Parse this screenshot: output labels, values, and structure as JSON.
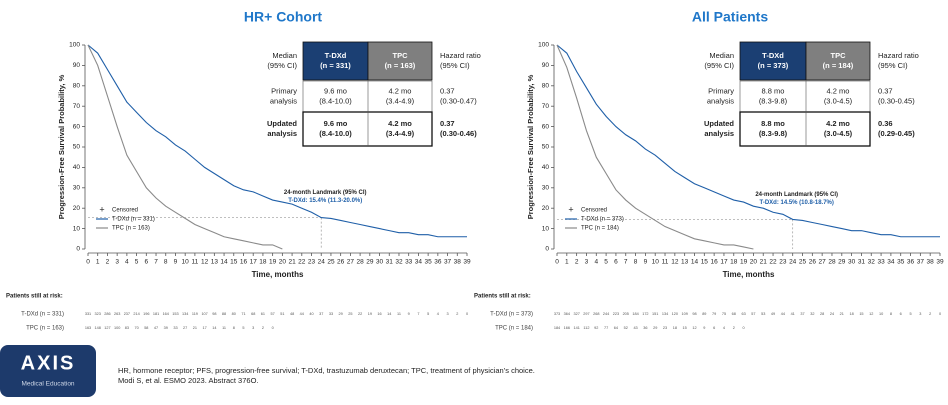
{
  "chart_data": [
    {
      "type": "line",
      "title": "HR+ Cohort",
      "x_label": "Time, months",
      "y_label": "Progression-Free Survival Probability, %",
      "x": [
        0,
        1,
        2,
        3,
        4,
        5,
        6,
        7,
        8,
        9,
        10,
        11,
        12,
        13,
        14,
        15,
        16,
        17,
        18,
        19,
        20,
        21,
        22,
        23,
        24,
        25,
        26,
        27,
        28,
        29,
        30,
        31,
        32,
        33,
        34,
        35,
        36,
        37,
        38,
        39
      ],
      "xlim": [
        0,
        39
      ],
      "xticks": [
        0,
        1,
        2,
        3,
        4,
        5,
        6,
        7,
        8,
        9,
        10,
        11,
        12,
        13,
        14,
        15,
        16,
        17,
        18,
        19,
        20,
        21,
        22,
        23,
        24,
        25,
        26,
        27,
        28,
        29,
        30,
        31,
        32,
        33,
        34,
        35,
        36,
        37,
        38,
        39
      ],
      "ylim": [
        0,
        100
      ],
      "yticks": [
        0,
        10,
        20,
        30,
        40,
        50,
        60,
        70,
        80,
        90,
        100
      ],
      "censored_label": "Censored",
      "series": [
        {
          "name": "T-DXd (n = 331)",
          "color": "#1f5fa8",
          "values": [
            100,
            96,
            88,
            80,
            72,
            67,
            62,
            58,
            55,
            51,
            48,
            44,
            40,
            37,
            34,
            31,
            29,
            28,
            26,
            24,
            23,
            22,
            20,
            18,
            15.4,
            15,
            14,
            13,
            12,
            11,
            10,
            9,
            8,
            8,
            7,
            7,
            6,
            6,
            6,
            6
          ]
        },
        {
          "name": "TPC (n = 163)",
          "color": "#8a8a8a",
          "values": [
            100,
            90,
            75,
            60,
            46,
            38,
            30,
            25,
            21,
            18,
            15,
            12,
            10,
            8,
            6,
            5,
            4,
            3,
            2,
            2,
            0,
            null,
            null,
            null,
            null,
            null,
            null,
            null,
            null,
            null,
            null,
            null,
            null,
            null,
            null,
            null,
            null,
            null,
            null,
            null
          ]
        }
      ],
      "landmark": {
        "title": "24-month Landmark (95% CI)",
        "label": "T-DXd: 15.4% (11.3-20.0%)",
        "x": 24,
        "value": 15.4
      },
      "table": {
        "header": [
          [
            "Median",
            "(95% CI)"
          ],
          [
            "T-DXd",
            "(n = 331)"
          ],
          [
            "TPC",
            "(n = 163)"
          ],
          [
            "Hazard ratio",
            "(95% CI)"
          ]
        ],
        "rows": [
          [
            [
              "Primary",
              "analysis"
            ],
            [
              "9.6 mo",
              "(8.4-10.0)"
            ],
            [
              "4.2 mo",
              "(3.4-4.9)"
            ],
            [
              "0.37",
              "(0.30-0.47)"
            ]
          ],
          [
            [
              "Updated",
              "analysis"
            ],
            [
              "9.6 mo",
              "(8.4-10.0)"
            ],
            [
              "4.2 mo",
              "(3.4-4.9)"
            ],
            [
              "0.37",
              "(0.30-0.46)"
            ]
          ]
        ]
      },
      "risk": {
        "title": "Patients still at risk:",
        "rows": [
          {
            "label": "T-DXd (n = 331)",
            "values": [
              331,
              323,
              286,
              263,
              237,
              214,
              196,
              181,
              164,
              153,
              134,
              119,
              107,
              98,
              88,
              80,
              71,
              68,
              61,
              57,
              51,
              48,
              44,
              40,
              37,
              33,
              29,
              25,
              22,
              19,
              16,
              14,
              11,
              9,
              7,
              5,
              4,
              3,
              2,
              0
            ]
          },
          {
            "label": "TPC (n = 163)",
            "values": [
              163,
              148,
              127,
              100,
              83,
              70,
              58,
              47,
              39,
              33,
              27,
              21,
              17,
              14,
              11,
              8,
              5,
              3,
              2,
              0
            ]
          }
        ]
      }
    },
    {
      "type": "line",
      "title": "All Patients",
      "x_label": "Time, months",
      "y_label": "Progression-Free Survival Probability, %",
      "x": [
        0,
        1,
        2,
        3,
        4,
        5,
        6,
        7,
        8,
        9,
        10,
        11,
        12,
        13,
        14,
        15,
        16,
        17,
        18,
        19,
        20,
        21,
        22,
        23,
        24,
        25,
        26,
        27,
        28,
        29,
        30,
        31,
        32,
        33,
        34,
        35,
        36,
        37,
        38,
        39
      ],
      "xlim": [
        0,
        39
      ],
      "xticks": [
        0,
        1,
        2,
        3,
        4,
        5,
        6,
        7,
        8,
        9,
        10,
        11,
        12,
        13,
        14,
        15,
        16,
        17,
        18,
        19,
        20,
        21,
        22,
        23,
        24,
        25,
        26,
        27,
        28,
        29,
        30,
        31,
        32,
        33,
        34,
        35,
        36,
        37,
        38,
        39
      ],
      "ylim": [
        0,
        100
      ],
      "yticks": [
        0,
        10,
        20,
        30,
        40,
        50,
        60,
        70,
        80,
        90,
        100
      ],
      "censored_label": "Censored",
      "series": [
        {
          "name": "T-DXd (n = 373)",
          "color": "#1f5fa8",
          "values": [
            100,
            96,
            87,
            79,
            71,
            65,
            60,
            56,
            53,
            49,
            46,
            42,
            38,
            35,
            32,
            30,
            28,
            26,
            24,
            23,
            21,
            20,
            18,
            17,
            14.5,
            14,
            13,
            12,
            11,
            10,
            9,
            9,
            8,
            7,
            7,
            6,
            6,
            6,
            6,
            6
          ]
        },
        {
          "name": "TPC (n = 184)",
          "color": "#8a8a8a",
          "values": [
            100,
            89,
            74,
            58,
            45,
            37,
            29,
            24,
            20,
            17,
            14,
            11,
            9,
            7,
            5,
            4,
            3,
            2,
            2,
            1,
            0,
            null,
            null,
            null,
            null,
            null,
            null,
            null,
            null,
            null,
            null,
            null,
            null,
            null,
            null,
            null,
            null,
            null,
            null,
            null
          ]
        }
      ],
      "landmark": {
        "title": "24-month Landmark (95% CI)",
        "label": "T-DXd: 14.5% (10.8-18.7%)",
        "x": 24,
        "value": 14.5
      },
      "table": {
        "header": [
          [
            "Median",
            "(95% CI)"
          ],
          [
            "T-DXd",
            "(n = 373)"
          ],
          [
            "TPC",
            "(n = 184)"
          ],
          [
            "Hazard ratio",
            "(95% CI)"
          ]
        ],
        "rows": [
          [
            [
              "Primary",
              "analysis"
            ],
            [
              "8.8 mo",
              "(8.3-9.8)"
            ],
            [
              "4.2 mo",
              "(3.0-4.5)"
            ],
            [
              "0.37",
              "(0.30-0.45)"
            ]
          ],
          [
            [
              "Updated",
              "analysis"
            ],
            [
              "8.8 mo",
              "(8.3-9.8)"
            ],
            [
              "4.2 mo",
              "(3.0-4.5)"
            ],
            [
              "0.36",
              "(0.29-0.45)"
            ]
          ]
        ]
      },
      "risk": {
        "title": "Patients still at risk:",
        "rows": [
          {
            "label": "T-DXd (n = 373)",
            "values": [
              373,
              364,
              327,
              297,
              268,
              244,
              223,
              205,
              184,
              172,
              151,
              134,
              120,
              109,
              98,
              89,
              79,
              75,
              68,
              63,
              57,
              53,
              49,
              44,
              41,
              37,
              32,
              28,
              24,
              21,
              18,
              15,
              12,
              10,
              8,
              6,
              5,
              3,
              2,
              0
            ]
          },
          {
            "label": "TPC (n = 184)",
            "values": [
              184,
              166,
              141,
              112,
              92,
              77,
              64,
              52,
              43,
              36,
              29,
              23,
              18,
              15,
              12,
              9,
              6,
              4,
              2,
              0
            ]
          }
        ]
      }
    }
  ],
  "logo": {
    "name": "AXIS",
    "subtitle": "Medical Education"
  },
  "footnotes": [
    "HR, hormone receptor; PFS, progression-free survival; T-DXd, trastuzumab deruxtecan; TPC, treatment of physician’s choice.",
    "Modi S, et al. ESMO 2023. Abstract 376O."
  ]
}
